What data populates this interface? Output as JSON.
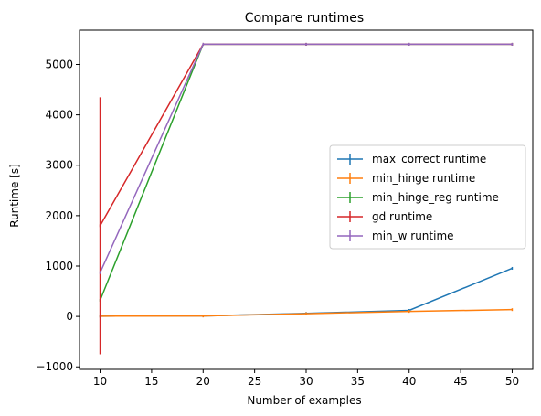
{
  "chart_data": {
    "type": "line",
    "title": "Compare runtimes",
    "xlabel": "Number of examples",
    "ylabel": "Runtime [s]",
    "xlim": [
      8,
      52
    ],
    "ylim": [
      -1050,
      5680
    ],
    "xticks": [
      10,
      15,
      20,
      25,
      30,
      35,
      40,
      45,
      50
    ],
    "yticks": [
      -1000,
      0,
      1000,
      2000,
      3000,
      4000,
      5000
    ],
    "ytick_labels": [
      "−1000",
      "0",
      "1000",
      "2000",
      "3000",
      "4000",
      "5000"
    ],
    "grid": false,
    "legend_position": "center-right",
    "error_bars": true,
    "x": [
      10,
      20,
      30,
      40,
      50
    ],
    "series": [
      {
        "name": "max_correct runtime",
        "color": "#1f77b4",
        "values": [
          5,
          10,
          60,
          120,
          955
        ],
        "errors": [
          0,
          0,
          0,
          0,
          0
        ]
      },
      {
        "name": "min_hinge runtime",
        "color": "#ff7f0e",
        "values": [
          5,
          10,
          55,
          100,
          135
        ],
        "errors": [
          0,
          0,
          0,
          0,
          0
        ]
      },
      {
        "name": "min_hinge_reg runtime",
        "color": "#2ca02c",
        "values": [
          320,
          5400,
          5400,
          5400,
          5400
        ],
        "errors": [
          0,
          0,
          0,
          0,
          0
        ]
      },
      {
        "name": "gd runtime",
        "color": "#d62728",
        "values": [
          1800,
          5400,
          5400,
          5400,
          5400
        ],
        "errors": [
          2550,
          0,
          0,
          0,
          0
        ]
      },
      {
        "name": "min_w runtime",
        "color": "#9467bd",
        "values": [
          870,
          5400,
          5400,
          5400,
          5400
        ],
        "errors": [
          0,
          0,
          0,
          0,
          0
        ]
      }
    ]
  }
}
